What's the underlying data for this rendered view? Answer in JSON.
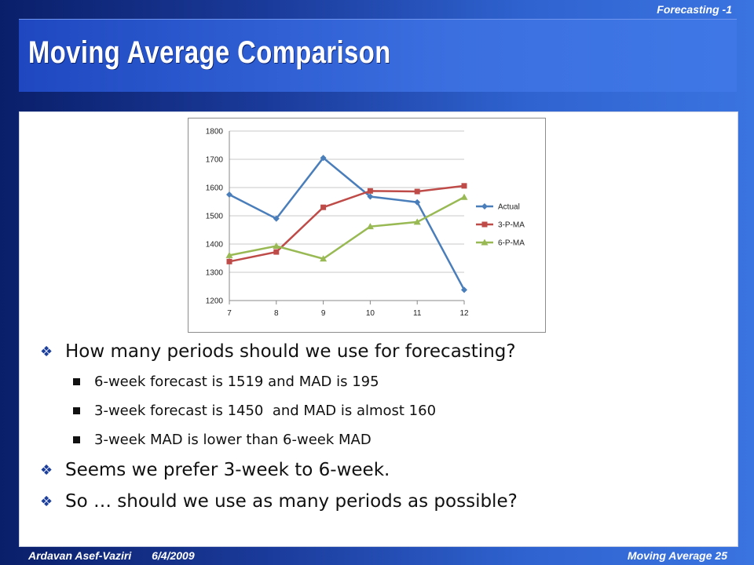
{
  "header": {
    "tag": "Forecasting -1"
  },
  "slide": {
    "title": "Moving Average Comparison"
  },
  "chart_data": {
    "type": "line",
    "x": [
      7,
      8,
      9,
      10,
      11,
      12
    ],
    "ylim": [
      1200,
      1800
    ],
    "yticks": [
      1200,
      1300,
      1400,
      1500,
      1600,
      1700,
      1800
    ],
    "grid": true,
    "legend_position": "right",
    "series": [
      {
        "name": "Actual",
        "color": "#4a7ebb",
        "marker": "diamond",
        "values": [
          1575,
          1490,
          1705,
          1568,
          1548,
          1238
        ]
      },
      {
        "name": "3-P-MA",
        "color": "#be4b48",
        "marker": "square",
        "values": [
          1338,
          1372,
          1530,
          1588,
          1586,
          1606
        ]
      },
      {
        "name": "6-P-MA",
        "color": "#98b954",
        "marker": "triangle",
        "values": [
          1360,
          1393,
          1348,
          1462,
          1478,
          1566
        ]
      }
    ]
  },
  "bullets": [
    {
      "level": 1,
      "text": "How many periods should we use for forecasting?"
    },
    {
      "level": 2,
      "text": "6-week forecast is 1519 and MAD is 195"
    },
    {
      "level": 2,
      "text": "3-week forecast is 1450  and MAD is almost 160"
    },
    {
      "level": 2,
      "text": "3-week MAD is lower than 6-week MAD"
    },
    {
      "level": 1,
      "text": "Seems we prefer 3-week to 6-week."
    },
    {
      "level": 1,
      "text": "So … should we use as many periods as possible?"
    }
  ],
  "footer": {
    "author": "Ardavan Asef-Vaziri",
    "date": "6/4/2009",
    "section": "Moving Average",
    "page": "25"
  }
}
